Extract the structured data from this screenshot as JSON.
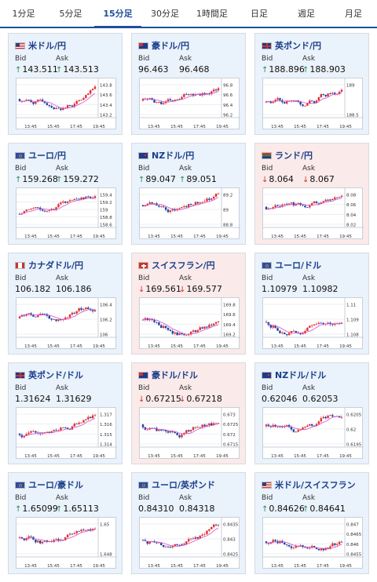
{
  "tabs": [
    {
      "label": "1分足",
      "active": false
    },
    {
      "label": "5分足",
      "active": false
    },
    {
      "label": "15分足",
      "active": true
    },
    {
      "label": "30分足",
      "active": false
    },
    {
      "label": "1時間足",
      "active": false
    },
    {
      "label": "日足",
      "active": false
    },
    {
      "label": "週足",
      "active": false
    },
    {
      "label": "月足",
      "active": false
    }
  ],
  "labels": {
    "bid": "Bid",
    "ask": "Ask"
  },
  "colors": {
    "up": "#2a8a5a",
    "down": "#d0332b",
    "bull_candle": "#e03030",
    "bear_candle": "#1f3f9c",
    "ma_line": "#d050d0",
    "title": "#1a3f8a"
  },
  "x_ticks": [
    "13:45",
    "15:45",
    "17:45",
    "19:45"
  ],
  "cards": [
    {
      "pair": "米ドル/円",
      "flags": [
        "us",
        "jp"
      ],
      "dir": "up",
      "bid": "143.511",
      "ask": "143.513",
      "yticks": [
        "143.8",
        "143.6",
        "143.4",
        "143.2"
      ]
    },
    {
      "pair": "豪ドル/円",
      "flags": [
        "au",
        "jp"
      ],
      "dir": "up",
      "arrows": false,
      "bid": "96.463",
      "ask": "96.468",
      "yticks": [
        "96.8",
        "96.6",
        "96.4",
        "96.2"
      ]
    },
    {
      "pair": "英ポンド/円",
      "flags": [
        "gb",
        "jp"
      ],
      "dir": "up",
      "bid": "188.896",
      "ask": "188.903",
      "yticks": [
        "189",
        "188.5"
      ]
    },
    {
      "pair": "ユーロ/円",
      "flags": [
        "eu",
        "jp"
      ],
      "dir": "up",
      "bid": "159.268",
      "ask": "159.272",
      "yticks": [
        "159.4",
        "159.2",
        "159",
        "158.8",
        "158.6"
      ]
    },
    {
      "pair": "NZドル/円",
      "flags": [
        "nz",
        "jp"
      ],
      "dir": "up",
      "bid": "89.047",
      "ask": "89.051",
      "yticks": [
        "89.2",
        "89",
        "88.8"
      ]
    },
    {
      "pair": "ランド/円",
      "flags": [
        "za",
        "jp"
      ],
      "dir": "down",
      "bid": "8.064",
      "ask": "8.067",
      "yticks": [
        "8.08",
        "8.06",
        "8.04",
        "8.02"
      ]
    },
    {
      "pair": "カナダドル/円",
      "flags": [
        "ca",
        "jp"
      ],
      "dir": "up",
      "arrows": false,
      "bid": "106.182",
      "ask": "106.186",
      "yticks": [
        "106.4",
        "106.2",
        "106"
      ]
    },
    {
      "pair": "スイスフラン/円",
      "flags": [
        "ch",
        "jp"
      ],
      "dir": "down",
      "bid": "169.561",
      "ask": "169.577",
      "yticks": [
        "169.8",
        "169.6",
        "169.4",
        "169.2"
      ]
    },
    {
      "pair": "ユーロ/ドル",
      "flags": [
        "eu",
        "us"
      ],
      "dir": "up",
      "arrows": false,
      "bid": "1.10979",
      "ask": "1.10982",
      "yticks": [
        "1.11",
        "1.109",
        "1.108"
      ]
    },
    {
      "pair": "英ポンド/ドル",
      "flags": [
        "gb",
        "us"
      ],
      "dir": "up",
      "arrows": false,
      "bid": "1.31624",
      "ask": "1.31629",
      "yticks": [
        "1.317",
        "1.316",
        "1.315",
        "1.314"
      ]
    },
    {
      "pair": "豪ドル/ドル",
      "flags": [
        "au",
        "us"
      ],
      "dir": "down",
      "bid": "0.67215",
      "ask": "0.67218",
      "yticks": [
        "0.673",
        "0.6725",
        "0.672",
        "0.6715"
      ]
    },
    {
      "pair": "NZドル/ドル",
      "flags": [
        "nz",
        "us"
      ],
      "dir": "up",
      "arrows": false,
      "bid": "0.62046",
      "ask": "0.62053",
      "yticks": [
        "0.6205",
        "0.62",
        "0.6195"
      ]
    },
    {
      "pair": "ユーロ/豪ドル",
      "flags": [
        "eu",
        "au"
      ],
      "dir": "up",
      "bid": "1.65099",
      "ask": "1.65113",
      "yticks": [
        "1.65",
        "1.648"
      ]
    },
    {
      "pair": "ユーロ/英ポンド",
      "flags": [
        "eu",
        "gb"
      ],
      "dir": "up",
      "arrows": false,
      "bid": "0.84310",
      "ask": "0.84318",
      "yticks": [
        "0.8435",
        "0.843",
        "0.8425"
      ]
    },
    {
      "pair": "米ドル/スイスフラン",
      "flags": [
        "us",
        "ch"
      ],
      "dir": "up",
      "bid": "0.84626",
      "ask": "0.84641",
      "yticks": [
        "0.847",
        "0.8465",
        "0.846",
        "0.8455"
      ]
    }
  ]
}
